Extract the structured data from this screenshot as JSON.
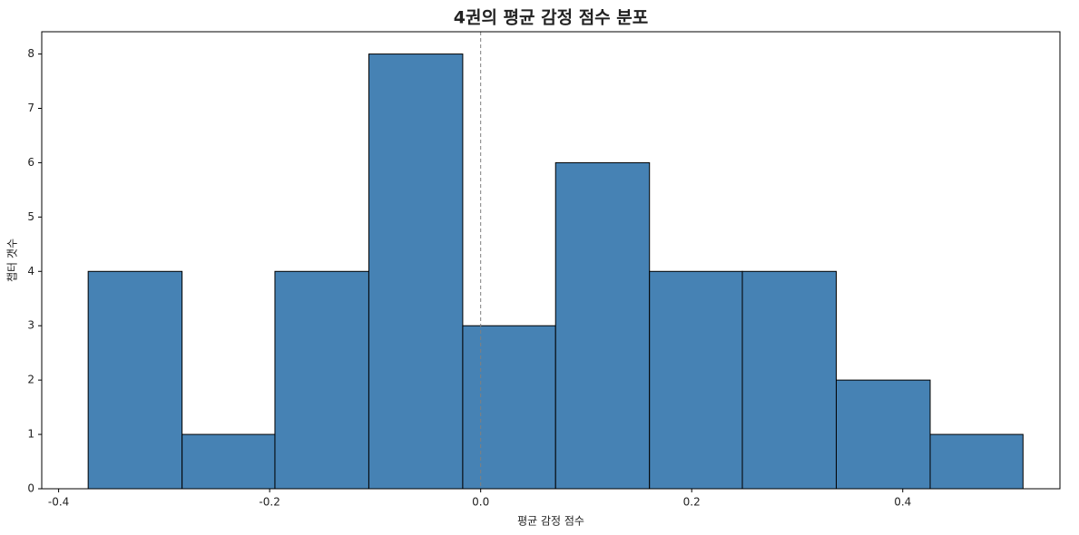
{
  "chart_data": {
    "type": "histogram",
    "title": "4권의 평균 감정 점수 분포",
    "x_label": "평균 감정 점수",
    "y_label": "챕터 갯수",
    "bins": [
      -0.372,
      -0.283,
      -0.195,
      -0.106,
      -0.017,
      0.071,
      0.16,
      0.248,
      0.337,
      0.426,
      0.514
    ],
    "counts": [
      4,
      1,
      4,
      8,
      3,
      6,
      4,
      4,
      2,
      1
    ],
    "color": "#4682b4",
    "edgecolor": "#000000",
    "xlim": [
      -0.416,
      0.549
    ],
    "ylim": [
      0,
      8.41
    ],
    "xticks": [
      -0.4,
      -0.2,
      {
        "value": 0,
        "label": "0.0"
      },
      0.2,
      0.4
    ],
    "yticks": [
      0,
      1,
      2,
      3,
      4,
      5,
      6,
      7,
      8
    ],
    "reference_line": {
      "x": 0,
      "color": "#808080"
    }
  }
}
